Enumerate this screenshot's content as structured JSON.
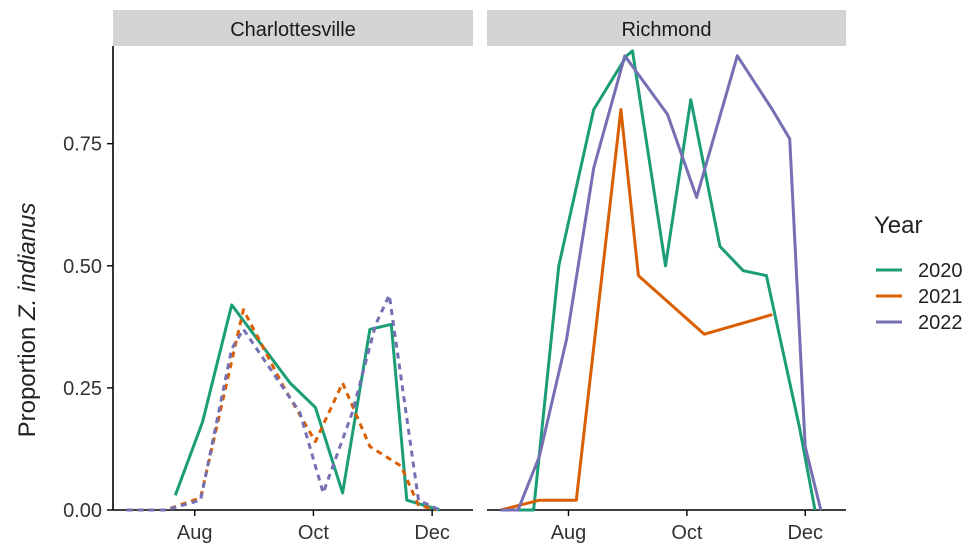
{
  "chart_data": {
    "type": "line",
    "ylabel_prefix": "Proportion ",
    "ylabel_italic": "Z. indianus",
    "ylim": [
      0,
      0.95
    ],
    "x_range": [
      "2020-06-20",
      "2020-12-22"
    ],
    "xticks": [
      {
        "label": "Aug",
        "date": "2020-08-01"
      },
      {
        "label": "Oct",
        "date": "2020-10-01"
      },
      {
        "label": "Dec",
        "date": "2020-12-01"
      }
    ],
    "yticks": [
      {
        "label": "0.00",
        "value": 0
      },
      {
        "label": "0.25",
        "value": 0.25
      },
      {
        "label": "0.50",
        "value": 0.5
      },
      {
        "label": "0.75",
        "value": 0.75
      }
    ],
    "legend": {
      "title": "Year",
      "placement": "right"
    },
    "series_styles": [
      {
        "name": "2020",
        "legend_label": "2020",
        "color": "#1b9e77",
        "dash": "solid"
      },
      {
        "name": "2021",
        "legend_label": "2021",
        "color": "#d95f02",
        "dash": "dashed"
      },
      {
        "name": "2022",
        "legend_label": "2022",
        "color": "#7570b3",
        "dash": "dashed"
      }
    ],
    "panels": [
      {
        "strip": "Charlottesville",
        "series": [
          {
            "name": "2020",
            "dash": "solid",
            "points": [
              [
                "2020-07-22",
                0.03
              ],
              [
                "2020-08-05",
                0.18
              ],
              [
                "2020-08-20",
                0.42
              ],
              [
                "2020-09-19",
                0.26
              ],
              [
                "2020-10-02",
                0.21
              ],
              [
                "2020-10-16",
                0.035
              ],
              [
                "2020-10-30",
                0.37
              ],
              [
                "2020-11-10",
                0.38
              ],
              [
                "2020-11-18",
                0.02
              ],
              [
                "2020-12-05",
                0.0
              ]
            ]
          },
          {
            "name": "2021",
            "dash": "dashed",
            "points": [
              [
                "2020-06-27",
                0.0
              ],
              [
                "2020-07-05",
                0.0
              ],
              [
                "2020-07-17",
                0.0
              ],
              [
                "2020-08-04",
                0.025
              ],
              [
                "2020-08-26",
                0.41
              ],
              [
                "2020-09-16",
                0.25
              ],
              [
                "2020-10-02",
                0.14
              ],
              [
                "2020-10-16",
                0.26
              ],
              [
                "2020-10-30",
                0.13
              ],
              [
                "2020-11-15",
                0.09
              ],
              [
                "2020-11-24",
                0.01
              ],
              [
                "2020-12-03",
                0.0
              ]
            ]
          },
          {
            "name": "2022",
            "dash": "dashed",
            "points": [
              [
                "2020-06-27",
                0.0
              ],
              [
                "2020-07-17",
                0.0
              ],
              [
                "2020-08-04",
                0.02
              ],
              [
                "2020-08-20",
                0.33
              ],
              [
                "2020-08-26",
                0.37
              ],
              [
                "2020-09-24",
                0.2
              ],
              [
                "2020-10-06",
                0.035
              ],
              [
                "2020-10-21",
                0.2
              ],
              [
                "2020-11-02",
                0.38
              ],
              [
                "2020-11-09",
                0.44
              ],
              [
                "2020-11-24",
                0.02
              ],
              [
                "2020-12-05",
                0.0
              ]
            ]
          }
        ]
      },
      {
        "strip": "Richmond",
        "series": [
          {
            "name": "2020",
            "dash": "solid",
            "points": [
              [
                "2020-06-27",
                0.0
              ],
              [
                "2020-07-14",
                0.0
              ],
              [
                "2020-07-27",
                0.5
              ],
              [
                "2020-08-14",
                0.82
              ],
              [
                "2020-08-31",
                0.93
              ],
              [
                "2020-09-03",
                0.94
              ],
              [
                "2020-09-20",
                0.5
              ],
              [
                "2020-10-03",
                0.84
              ],
              [
                "2020-10-18",
                0.54
              ],
              [
                "2020-10-30",
                0.49
              ],
              [
                "2020-11-11",
                0.48
              ],
              [
                "2020-11-28",
                0.17
              ],
              [
                "2020-12-06",
                0.0
              ]
            ]
          },
          {
            "name": "2021",
            "dash": "solid",
            "points": [
              [
                "2020-06-27",
                0.0
              ],
              [
                "2020-07-17",
                0.02
              ],
              [
                "2020-08-05",
                0.02
              ],
              [
                "2020-08-28",
                0.82
              ],
              [
                "2020-09-06",
                0.48
              ],
              [
                "2020-10-10",
                0.36
              ],
              [
                "2020-11-14",
                0.4
              ]
            ]
          },
          {
            "name": "2022",
            "dash": "solid",
            "points": [
              [
                "2020-06-27",
                0.0
              ],
              [
                "2020-07-06",
                0.0
              ],
              [
                "2020-07-17",
                0.11
              ],
              [
                "2020-07-31",
                0.35
              ],
              [
                "2020-08-14",
                0.7
              ],
              [
                "2020-08-30",
                0.93
              ],
              [
                "2020-09-21",
                0.81
              ],
              [
                "2020-10-06",
                0.64
              ],
              [
                "2020-10-27",
                0.93
              ],
              [
                "2020-11-14",
                0.82
              ],
              [
                "2020-11-23",
                0.76
              ],
              [
                "2020-12-01",
                0.13
              ],
              [
                "2020-12-09",
                0.0
              ]
            ]
          }
        ]
      }
    ]
  }
}
